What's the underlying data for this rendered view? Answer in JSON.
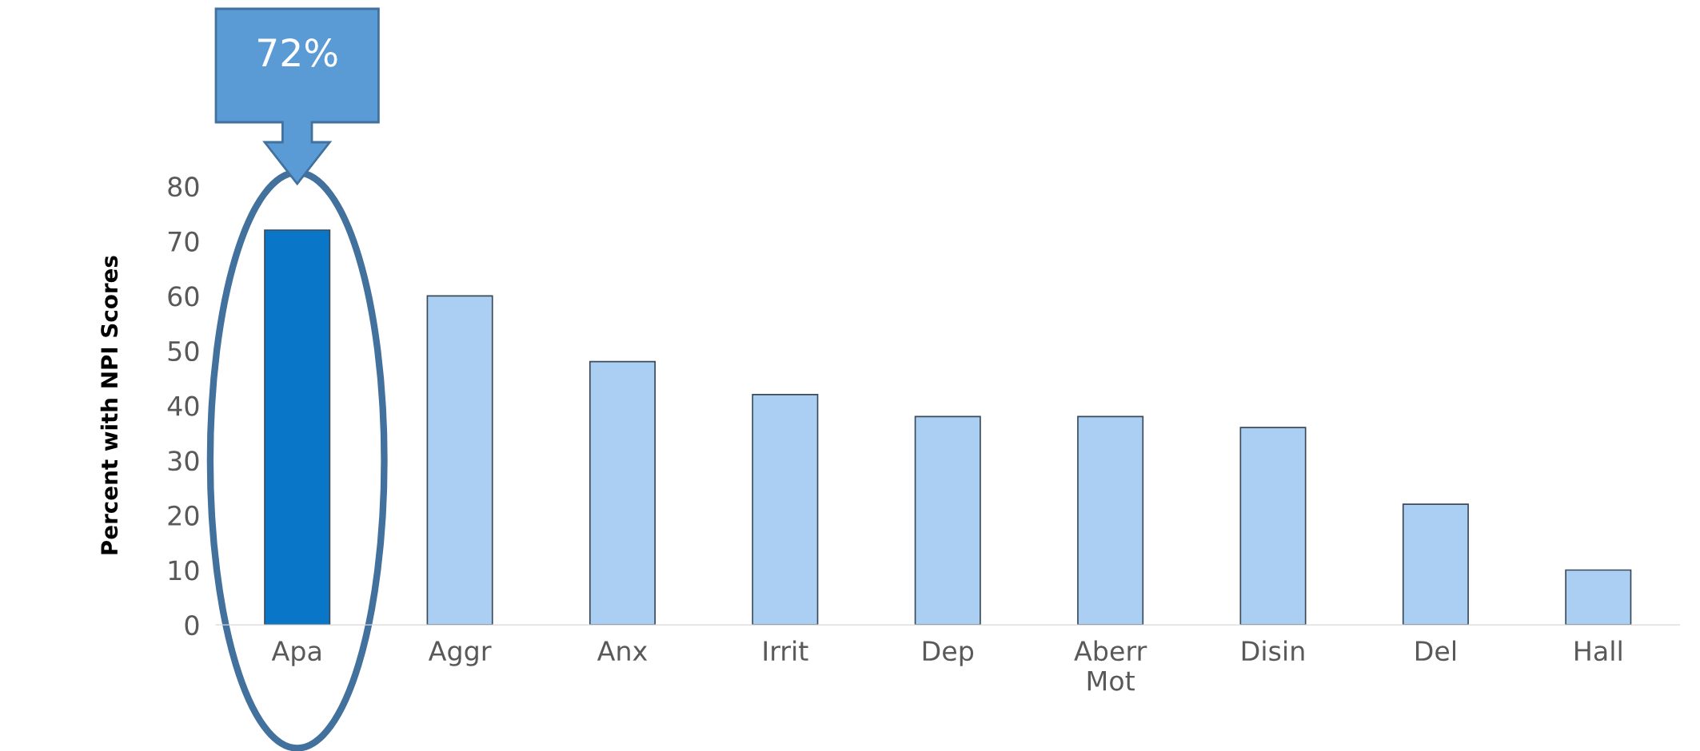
{
  "chart_data": {
    "type": "bar",
    "ylabel": "Percent with NPI Scores",
    "categories": [
      "Apa",
      "Aggr",
      "Anx",
      "Irrit",
      "Dep",
      "Aberr\nMot",
      "Disin",
      "Del",
      "Hall"
    ],
    "values": [
      72,
      60,
      48,
      42,
      38,
      38,
      36,
      22,
      10
    ],
    "colors": [
      "#0a76c8",
      "#aacff3",
      "#aacff3",
      "#aacff3",
      "#aacff3",
      "#aacff3",
      "#aacff3",
      "#aacff3",
      "#aacff3"
    ],
    "ylim": [
      0,
      80
    ],
    "yticks": [
      0,
      10,
      20,
      30,
      40,
      50,
      60,
      70,
      80
    ],
    "grid": false,
    "legend": false,
    "annotations": [
      "72%"
    ]
  }
}
